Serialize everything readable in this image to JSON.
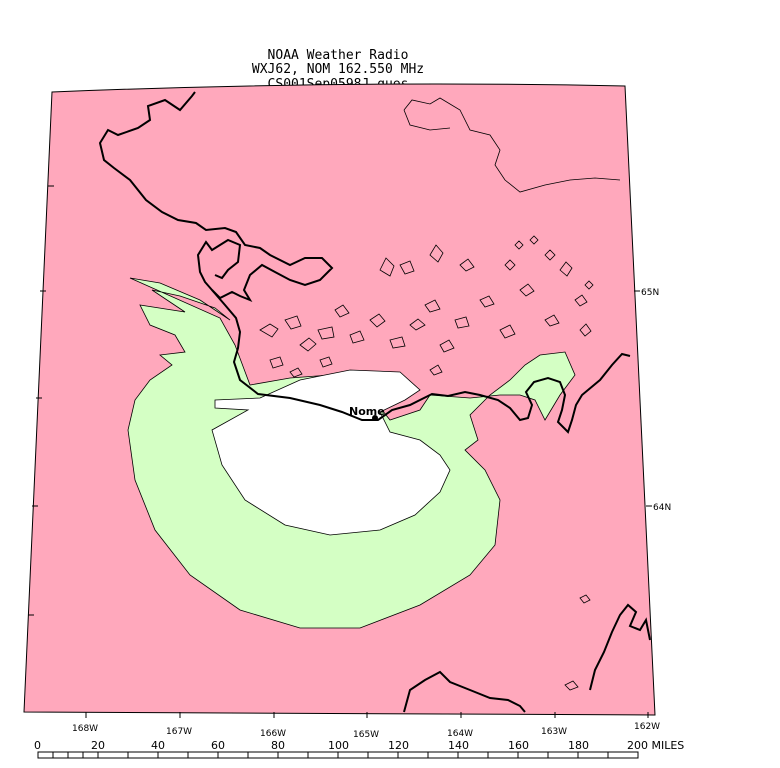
{
  "header": {
    "line1": "NOAA Weather Radio",
    "line2": "WXJ62, NOM 162.550 MHz",
    "line3": "CS001Sep0598J.ques"
  },
  "city": {
    "label": "Nome"
  },
  "latitude_labels": [
    "65N",
    "64N"
  ],
  "longitude_labels": [
    "168W",
    "167W",
    "166W",
    "165W",
    "164W",
    "163W",
    "162W"
  ],
  "scale": {
    "ticks": [
      "0",
      "20",
      "40",
      "60",
      "80",
      "100",
      "120",
      "140",
      "160",
      "180",
      "200 MILES"
    ]
  },
  "colors": {
    "no_coverage": "#ffa8bc",
    "fringe_coverage": "#d4ffc4",
    "reliable_coverage": "#ffffff",
    "coastline": "#000000"
  }
}
